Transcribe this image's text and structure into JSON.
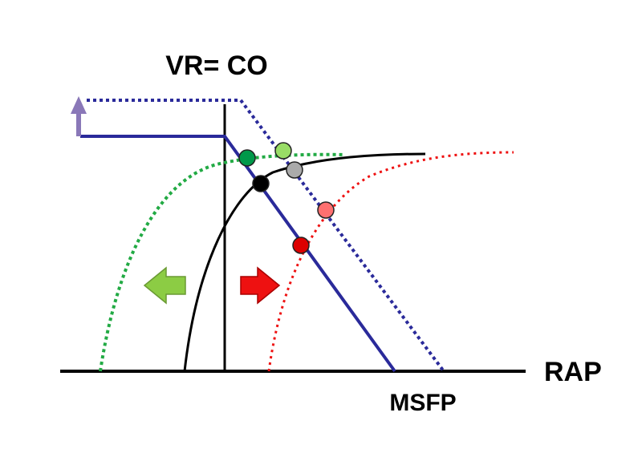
{
  "labels": {
    "title": "VR= CO",
    "x_axis": "RAP",
    "x_intercept": "MSFP"
  }
}
